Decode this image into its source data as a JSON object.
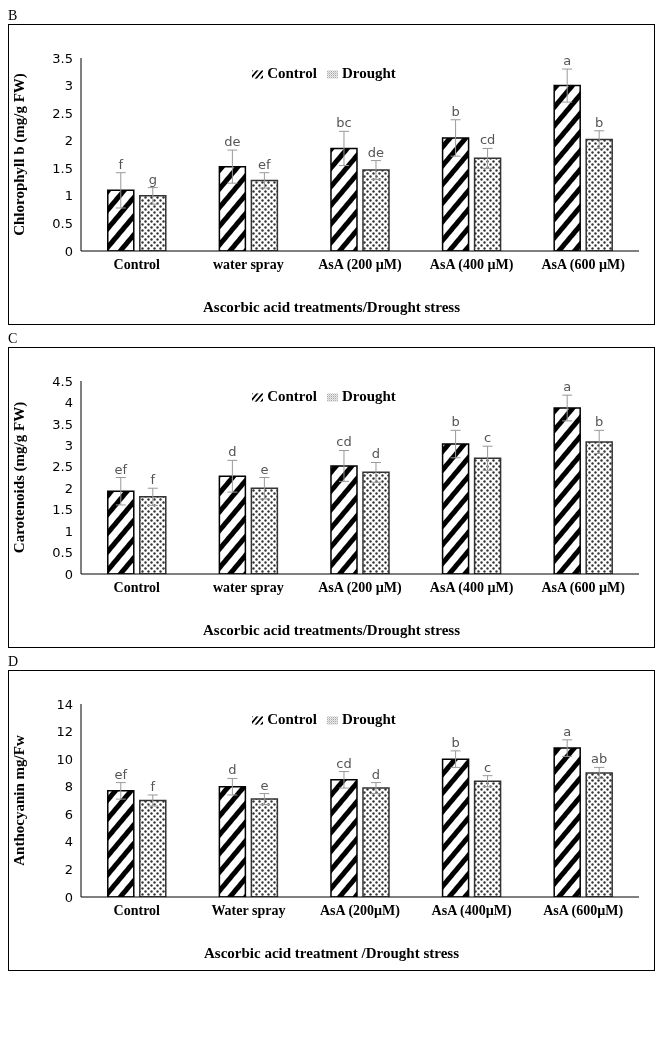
{
  "chart_data": [
    {
      "type": "bar",
      "title": "B",
      "xlabel": "Ascorbic acid treatments/Drought stress",
      "ylabel": "Chlorophyll b (mg/g FW)",
      "categories": [
        "Control",
        "water spray",
        "AsA (200 µM)",
        "AsA (400 µM)",
        "AsA (600 µM)"
      ],
      "series": [
        {
          "name": "Control",
          "color": "#000000",
          "values": [
            1.1,
            1.53,
            1.86,
            2.05,
            3.0
          ],
          "errors": [
            0.32,
            0.3,
            0.31,
            0.33,
            0.3
          ],
          "value_labels": [
            "f",
            "de",
            "bc",
            "b",
            "a"
          ]
        },
        {
          "name": "Drought",
          "color": "#333333",
          "values": [
            1.0,
            1.28,
            1.47,
            1.68,
            2.02
          ],
          "errors": [
            0.15,
            0.14,
            0.17,
            0.18,
            0.16
          ],
          "value_labels": [
            "g",
            "ef",
            "de",
            "cd",
            "b"
          ]
        }
      ],
      "ylim": [
        0,
        3.5
      ],
      "yticks": [
        0,
        0.5,
        1,
        1.5,
        2,
        2.5,
        3,
        3.5
      ],
      "legend": "top",
      "grid": false
    },
    {
      "type": "bar",
      "title": "C",
      "xlabel": "Ascorbic acid treatments/Drought stress",
      "ylabel": "Carotenoids (mg/g FW)",
      "categories": [
        "Control",
        "water spray",
        "AsA (200 µM)",
        "AsA (400 µM)",
        "AsA (600 µM)"
      ],
      "series": [
        {
          "name": "Control",
          "color": "#000000",
          "values": [
            1.93,
            2.28,
            2.52,
            3.03,
            3.87
          ],
          "errors": [
            0.32,
            0.37,
            0.36,
            0.32,
            0.3
          ],
          "value_labels": [
            "ef",
            "d",
            "cd",
            "b",
            "a"
          ]
        },
        {
          "name": "Drought",
          "color": "#333333",
          "values": [
            1.8,
            2.0,
            2.37,
            2.7,
            3.08
          ],
          "errors": [
            0.2,
            0.25,
            0.23,
            0.28,
            0.27
          ],
          "value_labels": [
            "f",
            "e",
            "d",
            "c",
            "b"
          ]
        }
      ],
      "ylim": [
        0,
        4.5
      ],
      "yticks": [
        0,
        0.5,
        1,
        1.5,
        2,
        2.5,
        3,
        3.5,
        4,
        4.5
      ],
      "legend": "top",
      "grid": false
    },
    {
      "type": "bar",
      "title": "D",
      "xlabel": "Ascorbic acid treatment /Drought stress",
      "ylabel": "Anthocyanin mg/Fw",
      "categories": [
        "Control",
        "Water spray",
        "AsA (200µM)",
        "AsA (400µM)",
        "AsA (600µM)"
      ],
      "series": [
        {
          "name": "Control",
          "color": "#000000",
          "values": [
            7.7,
            8.0,
            8.5,
            10.0,
            10.8
          ],
          "errors": [
            0.6,
            0.6,
            0.6,
            0.6,
            0.6
          ],
          "value_labels": [
            "ef",
            "d",
            "cd",
            "b",
            "a"
          ]
        },
        {
          "name": "Drought",
          "color": "#333333",
          "values": [
            7.0,
            7.1,
            7.9,
            8.4,
            9.0
          ],
          "errors": [
            0.4,
            0.4,
            0.4,
            0.4,
            0.4
          ],
          "value_labels": [
            "f",
            "e",
            "d",
            "c",
            "ab"
          ]
        }
      ],
      "ylim": [
        0,
        14
      ],
      "yticks": [
        0,
        2,
        4,
        6,
        8,
        10,
        12,
        14
      ],
      "legend": "top",
      "grid": false
    }
  ]
}
